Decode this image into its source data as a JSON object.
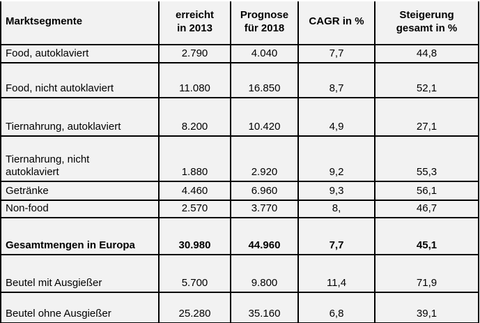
{
  "chart_data": {
    "type": "table",
    "columns": [
      {
        "lines": [
          "Marktsegmente"
        ]
      },
      {
        "lines": [
          "erreicht",
          "in 2013"
        ]
      },
      {
        "lines": [
          "Prognose",
          "für 2018"
        ]
      },
      {
        "lines": [
          "CAGR in %"
        ]
      },
      {
        "lines": [
          "Steigerung",
          "gesamt in %"
        ]
      }
    ],
    "rows": [
      {
        "label_lines": [
          "Food, autoklaviert"
        ],
        "values": [
          "2.790",
          "4.040",
          "7,7",
          "44,8"
        ],
        "bold": false
      },
      {
        "label_lines": [
          "Food, nicht autoklaviert"
        ],
        "values": [
          "11.080",
          "16.850",
          "8,7",
          "52,1"
        ],
        "bold": false
      },
      {
        "label_lines": [
          "Tiernahrung, autoklaviert"
        ],
        "values": [
          "8.200",
          "10.420",
          "4,9",
          "27,1"
        ],
        "bold": false
      },
      {
        "label_lines": [
          "Tiernahrung, nicht",
          "autoklaviert"
        ],
        "values": [
          "1.880",
          "2.920",
          "9,2",
          "55,3"
        ],
        "bold": false
      },
      {
        "label_lines": [
          "Getränke"
        ],
        "values": [
          "4.460",
          "6.960",
          "9,3",
          "56,1"
        ],
        "bold": false
      },
      {
        "label_lines": [
          "Non-food"
        ],
        "values": [
          "2.570",
          "3.770",
          "8,",
          "46,7"
        ],
        "bold": false
      },
      {
        "label_lines": [
          "Gesamtmengen in Europa"
        ],
        "values": [
          "30.980",
          "44.960",
          "7,7",
          "45,1"
        ],
        "bold": true
      },
      {
        "label_lines": [
          "Beutel mit Ausgießer"
        ],
        "values": [
          "5.700",
          "9.800",
          "11,4",
          "71,9"
        ],
        "bold": false
      },
      {
        "label_lines": [
          "Beutel ohne Ausgießer"
        ],
        "values": [
          "25.280",
          "35.160",
          "6,8",
          "39,1"
        ],
        "bold": false
      }
    ],
    "colors": {
      "cell_background": "#f2f2f2",
      "border": "#000000",
      "text": "#000000",
      "page_background": "#ffffff"
    }
  }
}
